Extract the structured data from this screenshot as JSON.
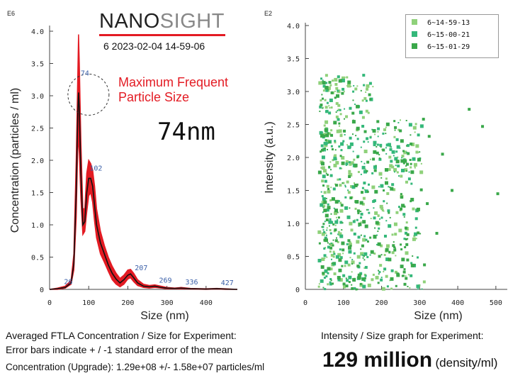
{
  "header": {
    "brand_left": "NANO",
    "brand_right": "SIGHT",
    "brand_accent": "#e31b23",
    "brand_dark": "#222222",
    "brand_gray": "#888888",
    "run_id": "6 2023-02-04 14-59-06"
  },
  "annotation": {
    "text_line1": "Maximum Frequent",
    "text_line2": "Particle Size",
    "size_value": "74nm",
    "color": "#e31b23"
  },
  "captions": {
    "left_line1": "Averaged FTLA Concentration / Size for Experiment:",
    "left_line2": "Error bars indicate + / -1 standard error of the mean",
    "left_line3": "Concentration (Upgrade):  1.29e+08 +/- 1.58e+07 particles/ml",
    "right_line1": "Intensity / Size graph for Experiment:",
    "big_value": "129 million",
    "big_unit": "(density/ml)"
  },
  "chart_data": [
    {
      "type": "line",
      "exponent_label": "E6",
      "xlabel": "Size (nm)",
      "ylabel": "Concentration (particles / ml)",
      "xlim": [
        0,
        480
      ],
      "ylim": [
        0,
        4.0
      ],
      "xticks": [
        "0",
        "100",
        "200",
        "300",
        "400"
      ],
      "xtick_values": [
        0,
        100,
        200,
        300,
        400
      ],
      "yticks": [
        "0",
        "0.5",
        "1.0",
        "1.5",
        "2.0",
        "2.5",
        "3.0",
        "3.5",
        "4.0"
      ],
      "ytick_values": [
        0,
        0.5,
        1.0,
        1.5,
        2.0,
        2.5,
        3.0,
        3.5,
        4.0
      ],
      "series": [
        {
          "role": "mean",
          "color": "#111111",
          "x": [
            0,
            20,
            40,
            55,
            62,
            68,
            72,
            74,
            76,
            80,
            85,
            90,
            95,
            100,
            105,
            110,
            115,
            120,
            130,
            140,
            150,
            160,
            170,
            180,
            190,
            200,
            207,
            215,
            225,
            240,
            255,
            269,
            285,
            300,
            320,
            336,
            360,
            400,
            427,
            450,
            480
          ],
          "y": [
            0,
            0.01,
            0.03,
            0.1,
            0.4,
            1.5,
            2.7,
            3.05,
            2.8,
            1.8,
            1.0,
            1.05,
            1.5,
            1.72,
            1.72,
            1.6,
            1.3,
            1.0,
            0.72,
            0.55,
            0.38,
            0.25,
            0.16,
            0.1,
            0.15,
            0.22,
            0.24,
            0.18,
            0.1,
            0.05,
            0.04,
            0.05,
            0.03,
            0.02,
            0.015,
            0.02,
            0.01,
            0.005,
            0.01,
            0.005,
            0
          ]
        },
        {
          "role": "error-band",
          "color": "#e31b23",
          "x": [
            0,
            20,
            40,
            55,
            62,
            68,
            72,
            74,
            76,
            80,
            85,
            90,
            95,
            100,
            105,
            110,
            115,
            120,
            130,
            140,
            150,
            160,
            170,
            180,
            190,
            200,
            207,
            215,
            225,
            240,
            255,
            269,
            285,
            300,
            320,
            336,
            360,
            400,
            427,
            450,
            480
          ],
          "lower": [
            0,
            0.0,
            0.02,
            0.08,
            0.3,
            1.1,
            2.2,
            2.3,
            2.1,
            1.4,
            0.85,
            0.9,
            1.2,
            1.45,
            1.5,
            1.35,
            1.05,
            0.8,
            0.55,
            0.42,
            0.28,
            0.15,
            0.08,
            0.04,
            0.08,
            0.16,
            0.18,
            0.12,
            0.06,
            0.03,
            0.02,
            0.03,
            0.02,
            0.01,
            0.01,
            0.01,
            0.005,
            0.0,
            0.005,
            0.0,
            0
          ],
          "upper": [
            0,
            0.02,
            0.05,
            0.14,
            0.55,
            2.0,
            3.3,
            3.95,
            3.5,
            2.3,
            1.25,
            1.25,
            1.8,
            2.0,
            1.95,
            1.85,
            1.6,
            1.25,
            0.9,
            0.68,
            0.5,
            0.36,
            0.25,
            0.17,
            0.22,
            0.3,
            0.31,
            0.25,
            0.15,
            0.08,
            0.06,
            0.07,
            0.05,
            0.03,
            0.02,
            0.03,
            0.015,
            0.01,
            0.015,
            0.01,
            0
          ]
        }
      ],
      "peak_labels": [
        {
          "text": "26",
          "x": 26,
          "y": 0.03
        },
        {
          "text": "74",
          "x": 74,
          "y": 3.05
        },
        {
          "text": "102",
          "x": 102,
          "y": 1.72
        },
        {
          "text": "207",
          "x": 207,
          "y": 0.24
        },
        {
          "text": "269",
          "x": 269,
          "y": 0.05
        },
        {
          "text": "336",
          "x": 336,
          "y": 0.02
        },
        {
          "text": "427",
          "x": 427,
          "y": 0.01
        }
      ],
      "highlight_x": 74,
      "highlight_y": 3.05
    },
    {
      "type": "scatter",
      "exponent_label": "E2",
      "xlabel": "Size (nm)",
      "ylabel": "Intensity (a.u.)",
      "xlim": [
        0,
        530
      ],
      "ylim": [
        0,
        4.0
      ],
      "xticks": [
        "0",
        "100",
        "200",
        "300",
        "400",
        "500"
      ],
      "xtick_values": [
        0,
        100,
        200,
        300,
        400,
        500
      ],
      "yticks": [
        "0",
        "0.5",
        "1.0",
        "1.5",
        "2.0",
        "2.5",
        "3.0",
        "3.5",
        "4.0"
      ],
      "ytick_values": [
        0,
        0.5,
        1.0,
        1.5,
        2.0,
        2.5,
        3.0,
        3.5,
        4.0
      ],
      "legend_position": "top-right",
      "series": [
        {
          "name": "6~14-59-13",
          "color": "#8fd17a",
          "seed": 11,
          "count": 260
        },
        {
          "name": "6~15-00-21",
          "color": "#34b87a",
          "seed": 23,
          "count": 260
        },
        {
          "name": "6~15-01-29",
          "color": "#3aa84a",
          "seed": 37,
          "count": 260
        }
      ],
      "outliers": [
        {
          "x": 430,
          "y": 2.73
        },
        {
          "x": 465,
          "y": 2.47
        },
        {
          "x": 505,
          "y": 1.45
        },
        {
          "x": 385,
          "y": 1.5
        },
        {
          "x": 360,
          "y": 2.05
        },
        {
          "x": 325,
          "y": 2.32
        },
        {
          "x": 310,
          "y": 2.58
        },
        {
          "x": 345,
          "y": 0.85
        },
        {
          "x": 320,
          "y": 1.3
        }
      ]
    }
  ]
}
